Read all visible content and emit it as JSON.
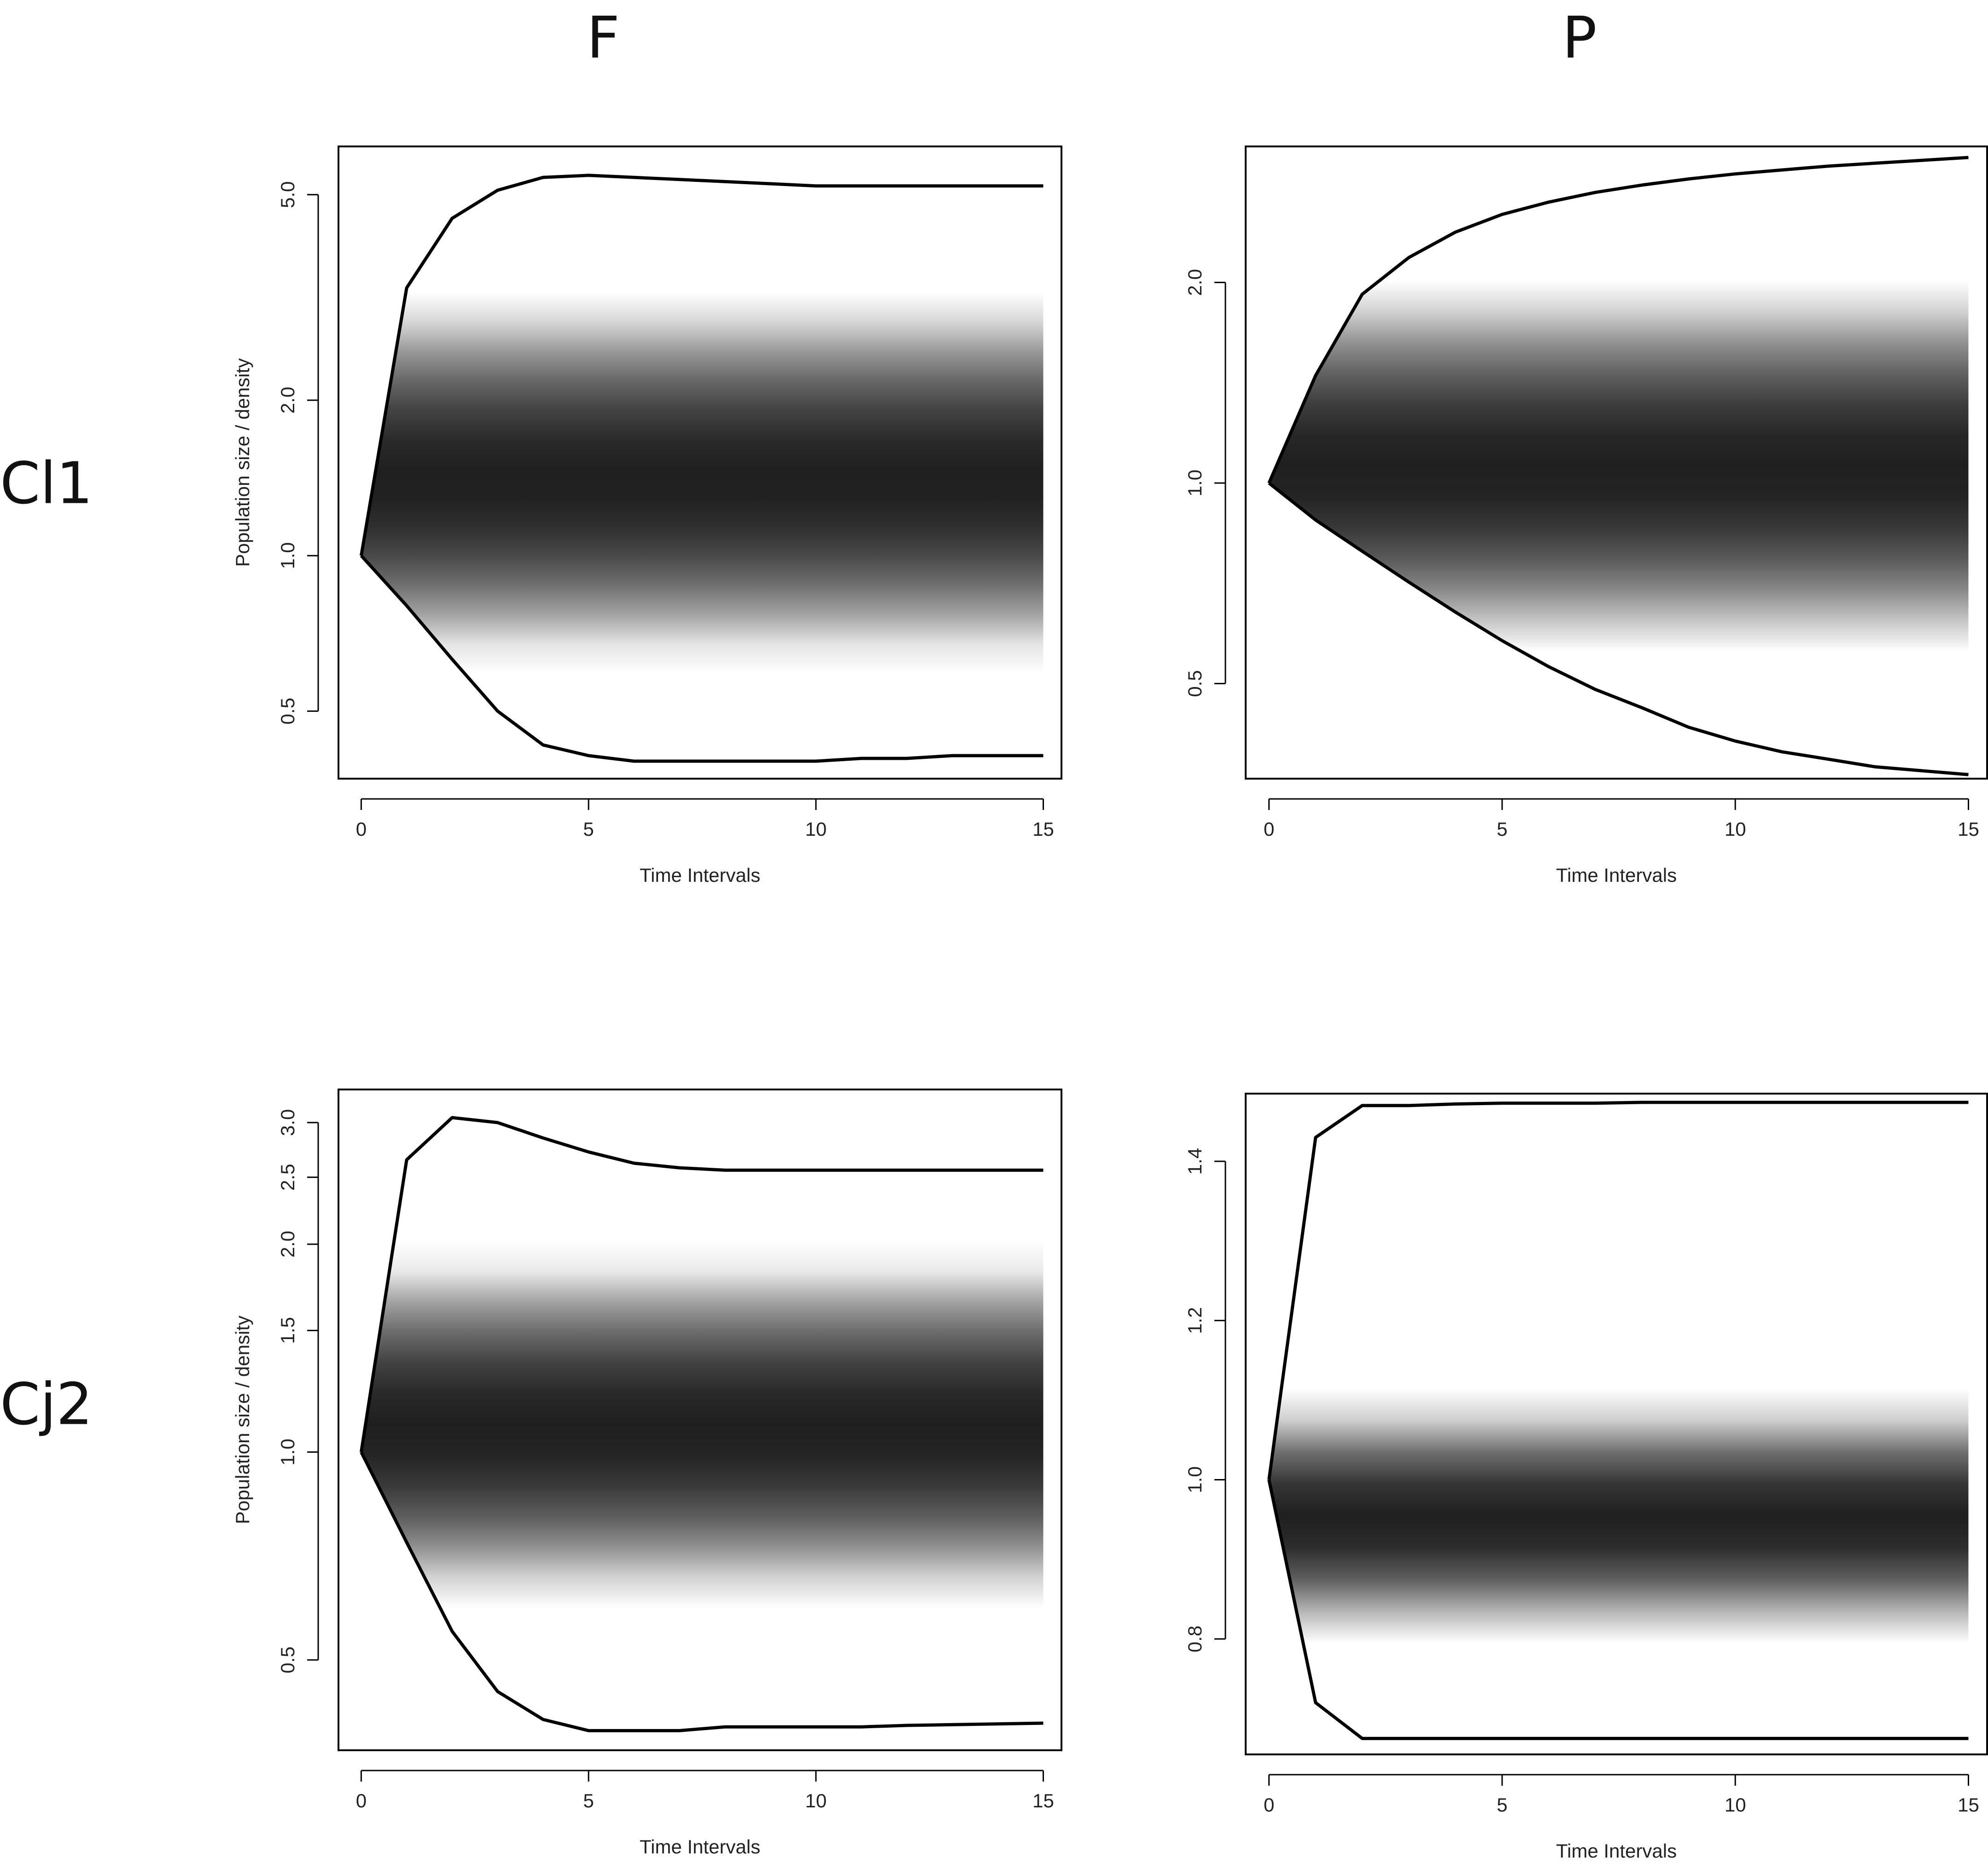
{
  "columns": {
    "F": "F",
    "P": "P"
  },
  "rows": {
    "Cl1": "Cl1",
    "Cj2": "Cj2"
  },
  "chart_data": [
    {
      "type": "area",
      "panel": "Cl1-F",
      "scale_y": "log",
      "xlabel": "Time Intervals",
      "ylabel": "Population size / density",
      "xlim": [
        -0.5,
        15.4
      ],
      "ylim": [
        0.37,
        6.2
      ],
      "xticks": [
        0,
        5,
        10,
        15
      ],
      "yticks": [
        0.5,
        1.0,
        2.0,
        5.0
      ],
      "ytick_labels": [
        "0.5",
        "1.0",
        "2.0",
        "5.0"
      ],
      "shade_center": 1.4,
      "shade_spread": 1.2,
      "series": [
        {
          "x": [
            0,
            1,
            2,
            3,
            4,
            5,
            6,
            7,
            8,
            9,
            10,
            11,
            12,
            13,
            14,
            15
          ],
          "values": [
            1.0,
            3.3,
            4.5,
            5.1,
            5.4,
            5.45,
            5.4,
            5.35,
            5.3,
            5.25,
            5.2,
            5.2,
            5.2,
            5.2,
            5.2,
            5.2
          ]
        },
        {
          "x": [
            0,
            1,
            2,
            3,
            4,
            5,
            6,
            7,
            8,
            9,
            10,
            11,
            12,
            13,
            14,
            15
          ],
          "values": [
            1.0,
            0.8,
            0.63,
            0.5,
            0.43,
            0.41,
            0.4,
            0.4,
            0.4,
            0.4,
            0.4,
            0.405,
            0.405,
            0.41,
            0.41,
            0.41
          ]
        }
      ]
    },
    {
      "type": "area",
      "panel": "Cl1-P",
      "scale_y": "log",
      "xlabel": "Time Intervals",
      "ylabel": "",
      "xlim": [
        -0.5,
        15.4
      ],
      "ylim": [
        0.36,
        3.2
      ],
      "xticks": [
        0,
        5,
        10,
        15
      ],
      "yticks": [
        0.5,
        1.0,
        2.0
      ],
      "ytick_labels": [
        "0.5",
        "1.0",
        "2.0"
      ],
      "shade_center": 1.05,
      "shade_spread": 0.85,
      "series": [
        {
          "x": [
            0,
            1,
            2,
            3,
            4,
            5,
            6,
            7,
            8,
            9,
            10,
            11,
            12,
            13,
            14,
            15
          ],
          "values": [
            1.0,
            1.45,
            1.92,
            2.18,
            2.38,
            2.53,
            2.64,
            2.73,
            2.8,
            2.86,
            2.91,
            2.95,
            2.99,
            3.02,
            3.05,
            3.08
          ]
        },
        {
          "x": [
            0,
            1,
            2,
            3,
            4,
            5,
            6,
            7,
            8,
            9,
            10,
            11,
            12,
            13,
            14,
            15
          ],
          "values": [
            1.0,
            0.88,
            0.79,
            0.71,
            0.64,
            0.58,
            0.53,
            0.49,
            0.46,
            0.43,
            0.41,
            0.395,
            0.385,
            0.375,
            0.37,
            0.365
          ]
        }
      ]
    },
    {
      "type": "area",
      "panel": "Cj2-F",
      "scale_y": "log",
      "xlabel": "Time Intervals",
      "ylabel": "Population size / density",
      "xlim": [
        -0.5,
        15.4
      ],
      "ylim": [
        0.37,
        3.35
      ],
      "xticks": [
        0,
        5,
        10,
        15
      ],
      "yticks": [
        0.5,
        1.0,
        1.5,
        2.0,
        2.5,
        3.0
      ],
      "ytick_labels": [
        "0.5",
        "1.0",
        "1.5",
        "2.0",
        "2.5",
        "3.0"
      ],
      "shade_center": 1.08,
      "shade_spread": 0.75,
      "series": [
        {
          "x": [
            0,
            1,
            2,
            3,
            4,
            5,
            6,
            7,
            8,
            9,
            10,
            11,
            12,
            13,
            14,
            15
          ],
          "values": [
            1.0,
            2.65,
            3.05,
            3.0,
            2.85,
            2.72,
            2.62,
            2.58,
            2.56,
            2.56,
            2.56,
            2.56,
            2.56,
            2.56,
            2.56,
            2.56
          ]
        },
        {
          "x": [
            0,
            1,
            2,
            3,
            4,
            5,
            6,
            7,
            8,
            9,
            10,
            11,
            12,
            13,
            14,
            15
          ],
          "values": [
            1.0,
            0.74,
            0.55,
            0.45,
            0.41,
            0.395,
            0.395,
            0.395,
            0.4,
            0.4,
            0.4,
            0.4,
            0.402,
            0.403,
            0.404,
            0.405
          ]
        }
      ]
    },
    {
      "type": "area",
      "panel": "Cj2-P",
      "scale_y": "linear",
      "xlabel": "Time Intervals",
      "ylabel": "",
      "xlim": [
        -0.5,
        15.4
      ],
      "ylim": [
        0.655,
        1.485
      ],
      "xticks": [
        0,
        5,
        10,
        15
      ],
      "yticks": [
        0.8,
        1.0,
        1.2,
        1.4
      ],
      "ytick_labels": [
        "0.8",
        "1.0",
        "1.2",
        "1.4"
      ],
      "shade_center": 0.95,
      "shade_spread": 0.15,
      "series": [
        {
          "x": [
            0,
            1,
            2,
            3,
            4,
            5,
            6,
            7,
            8,
            9,
            10,
            11,
            12,
            13,
            14,
            15
          ],
          "values": [
            1.0,
            1.43,
            1.47,
            1.47,
            1.472,
            1.473,
            1.473,
            1.473,
            1.474,
            1.474,
            1.474,
            1.474,
            1.474,
            1.474,
            1.474,
            1.474
          ]
        },
        {
          "x": [
            0,
            1,
            2,
            3,
            4,
            5,
            6,
            7,
            8,
            9,
            10,
            11,
            12,
            13,
            14,
            15
          ],
          "values": [
            1.0,
            0.72,
            0.675,
            0.675,
            0.675,
            0.675,
            0.675,
            0.675,
            0.675,
            0.675,
            0.675,
            0.675,
            0.675,
            0.675,
            0.675,
            0.675
          ]
        }
      ]
    }
  ]
}
